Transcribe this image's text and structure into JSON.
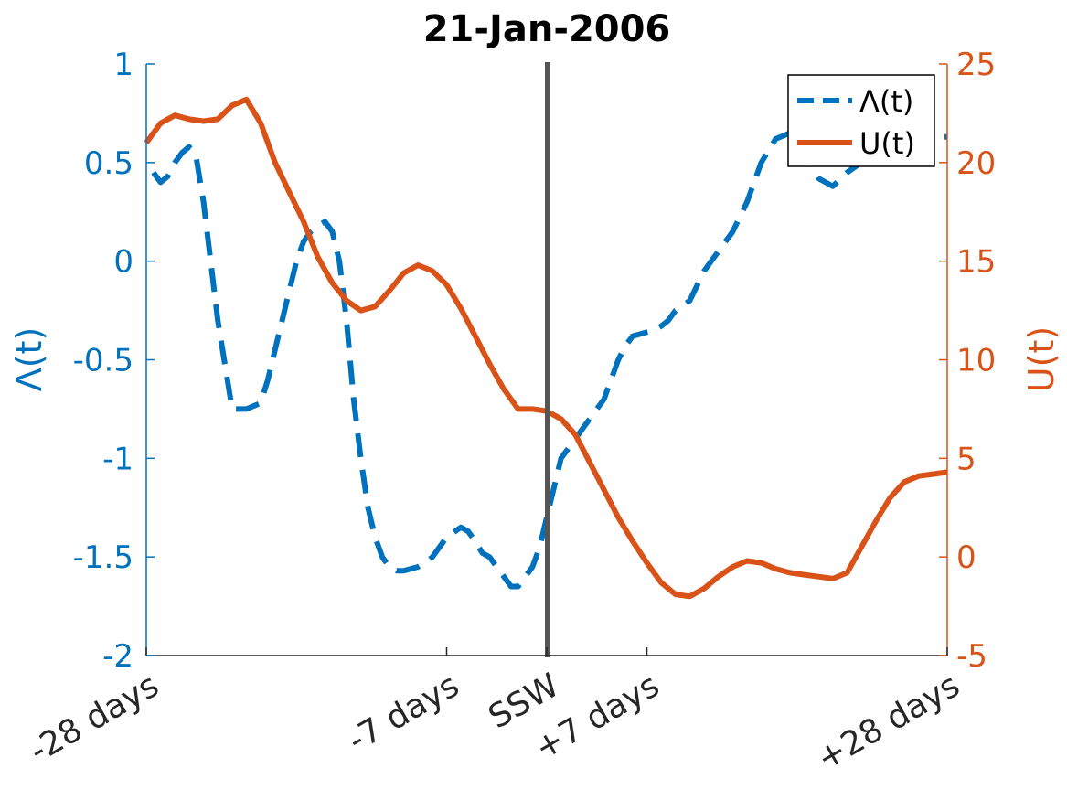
{
  "chart_data": {
    "type": "line",
    "title": "21-Jan-2006",
    "x_tick_labels": [
      "-28 days",
      "-7 days",
      "SSW",
      "+7 days",
      "+28 days"
    ],
    "x_ticks": [
      -28,
      -7,
      0,
      7,
      28
    ],
    "xlim": [
      -28,
      28
    ],
    "left_axis": {
      "label": "Λ(t)",
      "ylim": [
        -2,
        1
      ],
      "ticks": [
        "1",
        "0.5",
        "0",
        "-0.5",
        "-1",
        "-1.5",
        "-2"
      ],
      "color": "#0072BD"
    },
    "right_axis": {
      "label": "U(t)",
      "ylim": [
        -5,
        25
      ],
      "ticks": [
        "25",
        "20",
        "15",
        "10",
        "5",
        "0",
        "-5"
      ],
      "color": "#D95319"
    },
    "event_line": {
      "x": 0,
      "color": "#555555"
    },
    "legend": {
      "placement": "top-right",
      "entries": [
        "Λ(t)",
        "U(t)"
      ]
    },
    "series": [
      {
        "name": "Λ(t)",
        "axis": "left",
        "style": "dashed",
        "color": "#0072BD",
        "x": [
          -27.5,
          -27,
          -26.5,
          -26,
          -25.5,
          -25,
          -24.5,
          -24,
          -23,
          -22,
          -21,
          -20,
          -19.5,
          -19,
          -18.5,
          -18,
          -17.5,
          -17,
          -16.5,
          -16,
          -15.5,
          -15,
          -14.5,
          -14,
          -13.5,
          -13,
          -12.5,
          -12,
          -11.5,
          -11,
          -10.5,
          -10,
          -9.5,
          -9,
          -8.5,
          -8,
          -7.5,
          -7,
          -6,
          -5.5,
          -5,
          -4.5,
          -4,
          -3.5,
          -3,
          -2.5,
          -2,
          -1.5,
          -1,
          -0.5,
          0,
          0.5,
          1,
          1.5,
          2,
          2.5,
          3,
          3.5,
          4,
          4.5,
          5,
          5.5,
          6,
          6.5,
          7,
          7.5,
          8,
          8.5,
          9,
          10,
          11,
          12,
          13,
          14,
          15,
          16,
          17,
          18,
          19,
          20,
          21,
          22,
          23,
          24,
          25,
          26,
          27,
          28
        ],
        "y": [
          0.45,
          0.4,
          0.43,
          0.5,
          0.55,
          0.58,
          0.52,
          0.3,
          -0.3,
          -0.75,
          -0.75,
          -0.72,
          -0.6,
          -0.45,
          -0.3,
          -0.15,
          0,
          0.1,
          0.15,
          0.18,
          0.2,
          0.15,
          0,
          -0.3,
          -0.7,
          -1.0,
          -1.25,
          -1.4,
          -1.5,
          -1.55,
          -1.57,
          -1.57,
          -1.56,
          -1.55,
          -1.53,
          -1.5,
          -1.45,
          -1.4,
          -1.35,
          -1.37,
          -1.42,
          -1.48,
          -1.5,
          -1.55,
          -1.6,
          -1.65,
          -1.65,
          -1.6,
          -1.55,
          -1.45,
          -1.3,
          -1.15,
          -1.0,
          -0.95,
          -0.9,
          -0.85,
          -0.8,
          -0.75,
          -0.7,
          -0.6,
          -0.5,
          -0.43,
          -0.38,
          -0.37,
          -0.36,
          -0.35,
          -0.33,
          -0.3,
          -0.25,
          -0.2,
          -0.05,
          0.05,
          0.15,
          0.3,
          0.5,
          0.62,
          0.65,
          0.55,
          0.42,
          0.38,
          0.45,
          0.5,
          0.58,
          0.6,
          0.62,
          0.62,
          0.63,
          0.63
        ]
      },
      {
        "name": "U(t)",
        "axis": "right",
        "color": "#D95319",
        "x": [
          -28,
          -27,
          -26,
          -25,
          -24,
          -23,
          -22,
          -21,
          -20,
          -19,
          -18,
          -17,
          -16,
          -15,
          -14,
          -13,
          -12,
          -11,
          -10,
          -9,
          -8,
          -7,
          -6,
          -5,
          -4,
          -3,
          -2,
          -1,
          0,
          1,
          2,
          3,
          4,
          5,
          6,
          7,
          8,
          9,
          10,
          11,
          12,
          13,
          14,
          15,
          16,
          17,
          18,
          19,
          20,
          21,
          22,
          23,
          24,
          25,
          26,
          27,
          28
        ],
        "y": [
          21,
          22,
          22.4,
          22.2,
          22.1,
          22.2,
          22.9,
          23.2,
          22,
          20,
          18.5,
          17,
          15.2,
          13.9,
          13.0,
          12.5,
          12.7,
          13.5,
          14.4,
          14.8,
          14.5,
          13.8,
          12.6,
          11.2,
          9.8,
          8.5,
          7.5,
          7.5,
          7.4,
          7,
          6.2,
          4.8,
          3.4,
          2.0,
          0.8,
          -0.3,
          -1.3,
          -1.9,
          -2.0,
          -1.6,
          -1.0,
          -0.5,
          -0.2,
          -0.3,
          -0.6,
          -0.8,
          -0.9,
          -1.0,
          -1.1,
          -0.8,
          0.5,
          1.8,
          3.0,
          3.8,
          4.1,
          4.2,
          4.3
        ]
      }
    ]
  }
}
